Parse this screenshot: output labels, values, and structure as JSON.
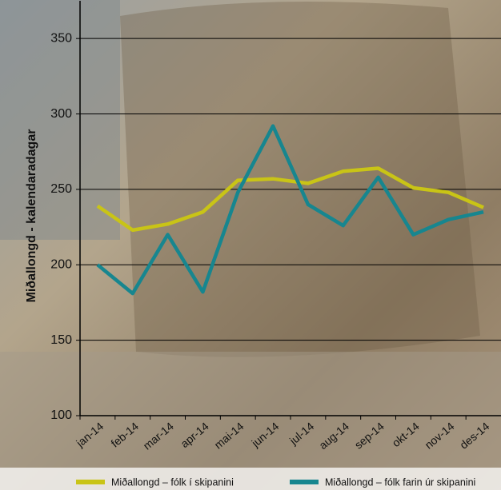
{
  "chart_data": {
    "type": "line",
    "y_label": "Miðallongd - kalendaradagar",
    "categories": [
      "jan-14",
      "feb-14",
      "mar-14",
      "apr-14",
      "mai-14",
      "jun-14",
      "jul-14",
      "aug-14",
      "sep-14",
      "okt-14",
      "nov-14",
      "des-14"
    ],
    "series": [
      {
        "name": "Miðallongd – fólk í skipanini",
        "color": "#c9c416",
        "values": [
          239,
          223,
          227,
          235,
          256,
          257,
          254,
          262,
          264,
          251,
          248,
          238
        ]
      },
      {
        "name": "Miðallongd – fólk farin úr skipanini",
        "color": "#17868f",
        "values": [
          200,
          181,
          220,
          182,
          248,
          292,
          240,
          226,
          258,
          220,
          230,
          235
        ]
      }
    ],
    "ylim": [
      100,
      375
    ],
    "yticks": [
      100,
      150,
      200,
      250,
      300,
      350
    ],
    "grid": true
  }
}
